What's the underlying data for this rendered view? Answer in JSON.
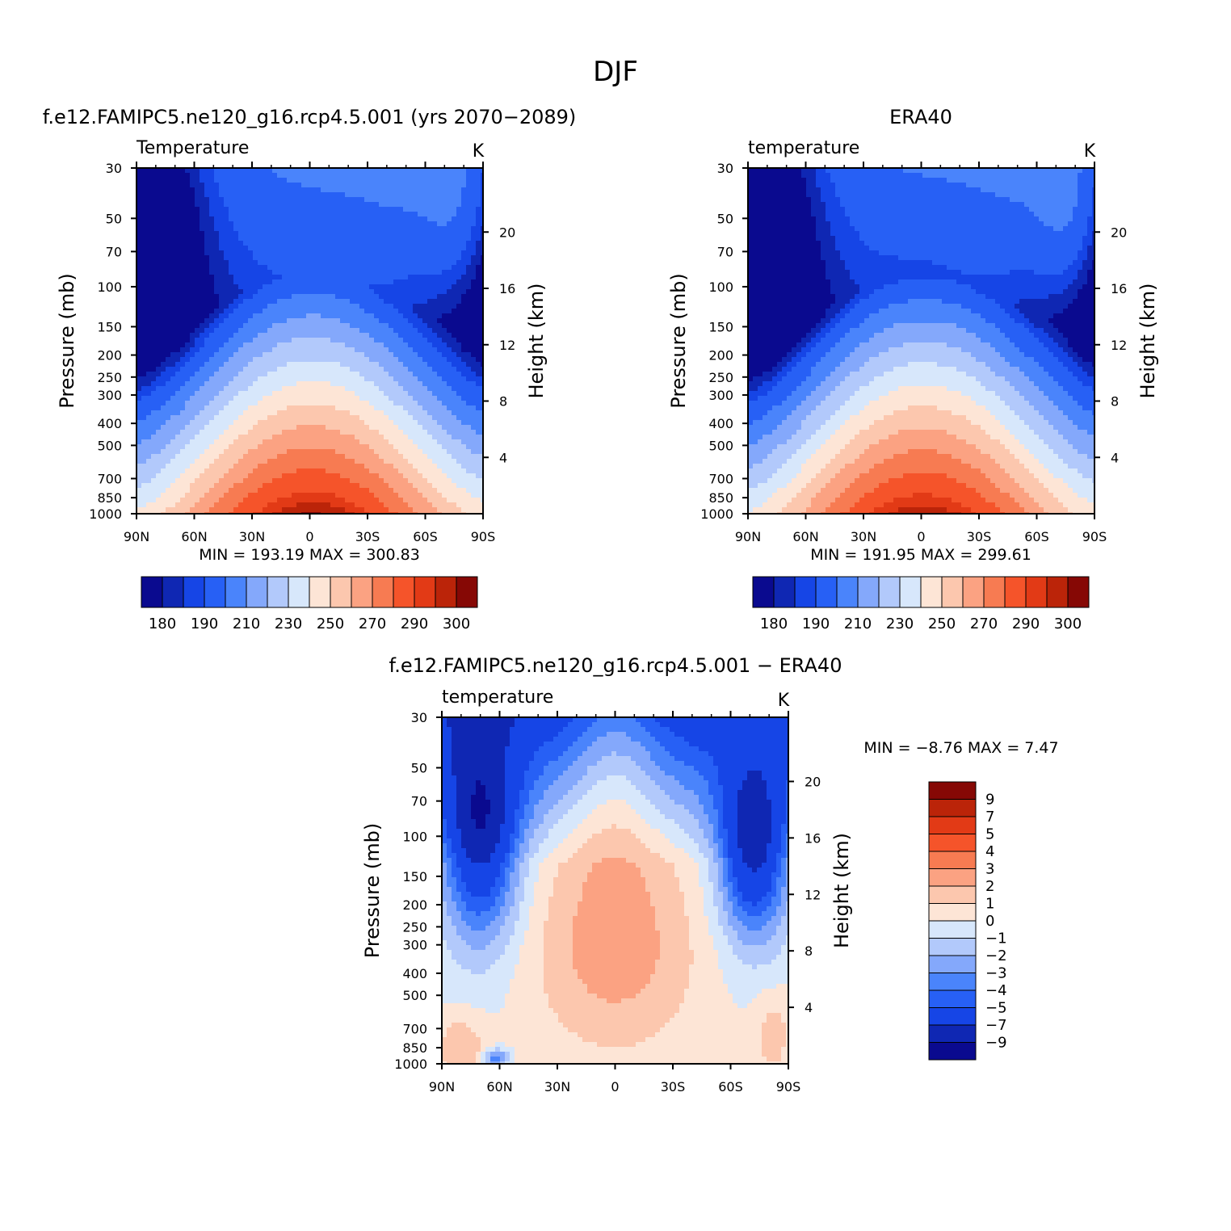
{
  "figure_title": "DJF",
  "panels": [
    {
      "id": "model",
      "title": "f.e12.FAMIPC5.ne120_g16.rcp4.5.001 (yrs 2070-2089)",
      "left_label": "Temperature",
      "right_label": "K",
      "ylabel": "Pressure (mb)",
      "y2label": "Height (km)",
      "min_text": "MIN = 193.19",
      "max_text": "MAX = 300.83",
      "colorbar_ticks": [
        "180",
        "190",
        "210",
        "230",
        "250",
        "270",
        "290",
        "300"
      ]
    },
    {
      "id": "obs",
      "title": "ERA40",
      "left_label": "temperature",
      "right_label": "K",
      "ylabel": "Pressure (mb)",
      "y2label": "Height (km)",
      "min_text": "MIN = 191.95",
      "max_text": "MAX = 299.61",
      "colorbar_ticks": [
        "180",
        "190",
        "210",
        "230",
        "250",
        "270",
        "290",
        "300"
      ]
    },
    {
      "id": "diff",
      "title": "f.e12.FAMIPC5.ne120_g16.rcp4.5.001 - ERA40",
      "left_label": "temperature",
      "right_label": "K",
      "ylabel": "Pressure (mb)",
      "y2label": "Height (km)",
      "min_text": "MIN = -8.76",
      "max_text": "MAX = 7.47",
      "colorbar_ticks": [
        "9",
        "7",
        "5",
        "4",
        "3",
        "2",
        "1",
        "0",
        "-1",
        "-2",
        "-3",
        "-4",
        "-5",
        "-7",
        "-9"
      ]
    }
  ],
  "chart_data": [
    {
      "type": "heatmap",
      "title": "f.e12.FAMIPC5.ne120_g16.rcp4.5.001 (yrs 2070-2089)",
      "xlabel": "",
      "ylabel": "Pressure (mb)",
      "y2label": "Height (km)",
      "x_ticks": [
        "90N",
        "60N",
        "30N",
        "0",
        "30S",
        "60S",
        "90S"
      ],
      "y_ticks": [
        30,
        50,
        70,
        100,
        150,
        200,
        250,
        300,
        400,
        500,
        700,
        850,
        1000
      ],
      "y2_ticks": [
        4,
        8,
        12,
        16,
        20
      ],
      "y_scale": "log",
      "ylim": [
        1000,
        30
      ],
      "contour_levels": [
        180,
        185,
        190,
        200,
        210,
        220,
        230,
        240,
        250,
        260,
        270,
        280,
        290,
        295,
        300
      ],
      "colors": [
        "#0a0a8f",
        "#0f27b3",
        "#1645e6",
        "#2760f5",
        "#4a84fb",
        "#84a8fb",
        "#b2c9fb",
        "#d7e7fb",
        "#fde5d6",
        "#fcc7ae",
        "#fba282",
        "#f77b52",
        "#f5542a",
        "#e23a16",
        "#bb2409",
        "#860805"
      ],
      "min": 193.19,
      "max": 300.83
    },
    {
      "type": "heatmap",
      "title": "ERA40",
      "xlabel": "",
      "ylabel": "Pressure (mb)",
      "y2label": "Height (km)",
      "x_ticks": [
        "90N",
        "60N",
        "30N",
        "0",
        "30S",
        "60S",
        "90S"
      ],
      "y_ticks": [
        30,
        50,
        70,
        100,
        150,
        200,
        250,
        300,
        400,
        500,
        700,
        850,
        1000
      ],
      "y2_ticks": [
        4,
        8,
        12,
        16,
        20
      ],
      "y_scale": "log",
      "ylim": [
        1000,
        30
      ],
      "contour_levels": [
        180,
        185,
        190,
        200,
        210,
        220,
        230,
        240,
        250,
        260,
        270,
        280,
        290,
        295,
        300
      ],
      "colors": [
        "#0a0a8f",
        "#0f27b3",
        "#1645e6",
        "#2760f5",
        "#4a84fb",
        "#84a8fb",
        "#b2c9fb",
        "#d7e7fb",
        "#fde5d6",
        "#fcc7ae",
        "#fba282",
        "#f77b52",
        "#f5542a",
        "#e23a16",
        "#bb2409",
        "#860805"
      ],
      "min": 191.95,
      "max": 299.61
    },
    {
      "type": "heatmap",
      "title": "f.e12.FAMIPC5.ne120_g16.rcp4.5.001 - ERA40",
      "xlabel": "",
      "ylabel": "Pressure (mb)",
      "y2label": "Height (km)",
      "x_ticks": [
        "90N",
        "60N",
        "30N",
        "0",
        "30S",
        "60S",
        "90S"
      ],
      "y_ticks": [
        30,
        50,
        70,
        100,
        150,
        200,
        250,
        300,
        400,
        500,
        700,
        850,
        1000
      ],
      "y2_ticks": [
        4,
        8,
        12,
        16,
        20
      ],
      "y_scale": "log",
      "ylim": [
        1000,
        30
      ],
      "contour_levels": [
        -9,
        -7,
        -5,
        -4,
        -3,
        -2,
        -1,
        0,
        1,
        2,
        3,
        4,
        5,
        7,
        9
      ],
      "colors": [
        "#0a0a8f",
        "#0f27b3",
        "#1645e6",
        "#2760f5",
        "#4a84fb",
        "#84a8fb",
        "#b2c9fb",
        "#d7e7fb",
        "#fde5d6",
        "#fcc7ae",
        "#fba282",
        "#f77b52",
        "#f5542a",
        "#e23a16",
        "#bb2409",
        "#860805"
      ],
      "min": -8.76,
      "max": 7.47
    }
  ]
}
